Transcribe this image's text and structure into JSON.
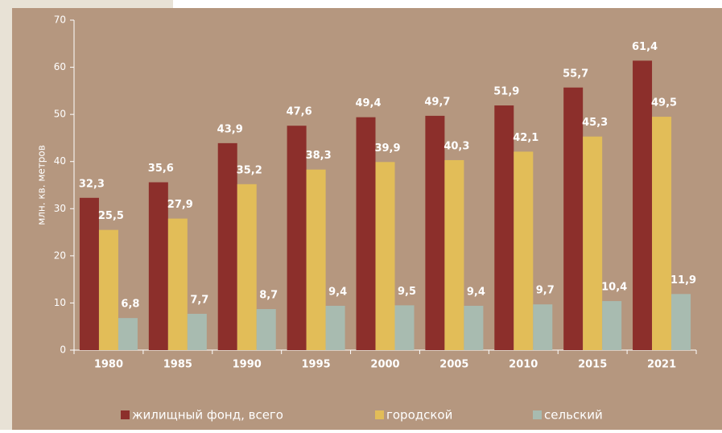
{
  "chart_data": {
    "type": "bar",
    "y_label": "млн. кв. метров",
    "categories": [
      "1980",
      "1985",
      "1990",
      "1995",
      "2000",
      "2005",
      "2010",
      "2015",
      "2021"
    ],
    "series": [
      {
        "name": "жилищный фонд, всего",
        "color": "#8c2f2b",
        "values": [
          32.3,
          35.6,
          43.9,
          47.6,
          49.4,
          49.7,
          51.9,
          55.7,
          61.4
        ],
        "value_labels": [
          "32,3",
          "35,6",
          "43,9",
          "47,6",
          "49,4",
          "49,7",
          "51,9",
          "55,7",
          "61,4"
        ]
      },
      {
        "name": "городской",
        "color": "#e2bd58",
        "values": [
          25.5,
          27.9,
          35.2,
          38.3,
          39.9,
          40.3,
          42.1,
          45.3,
          49.5
        ],
        "value_labels": [
          "25,5",
          "27,9",
          "35,2",
          "38,3",
          "39,9",
          "40,3",
          "42,1",
          "45,3",
          "49,5"
        ]
      },
      {
        "name": "сельский",
        "color": "#a8bbb0",
        "values": [
          6.8,
          7.7,
          8.7,
          9.4,
          9.5,
          9.4,
          9.7,
          10.4,
          11.9
        ],
        "value_labels": [
          "6,8",
          "7,7",
          "8,7",
          "9,4",
          "9,5",
          "9,4",
          "9,7",
          "10,4",
          "11,9"
        ]
      }
    ],
    "ylim": [
      0,
      70
    ],
    "yticks": [
      0,
      10,
      20,
      30,
      40,
      50,
      60,
      70
    ]
  }
}
